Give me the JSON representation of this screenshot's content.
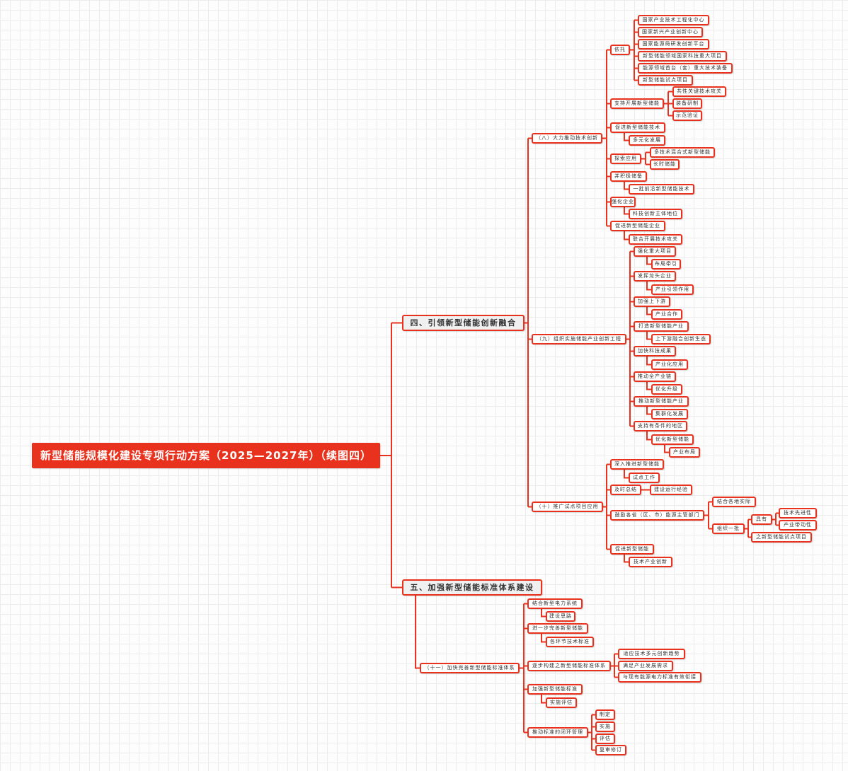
{
  "colors": {
    "accent": "#e8321e",
    "root_text": "#ffffff",
    "node_fill": "#ffffff",
    "branch_fill": "#f0f0f0"
  },
  "mindmap": {
    "title": "新型储能规模化建设专项行动方案（2025—2027年）（续图四）",
    "children": [
      {
        "label": "四、引领新型储能创新融合",
        "children": [
          {
            "label": "（八）大力推动技术创新",
            "children": [
              {
                "label": "依托",
                "children": [
                  {
                    "label": "国家产业技术工程化中心"
                  },
                  {
                    "label": "国家新兴产业创新中心"
                  },
                  {
                    "label": "国家能源局研发创新平台"
                  },
                  {
                    "label": "新型储能领域国家科技重大项目"
                  },
                  {
                    "label": "能源领域首台（套）重大技术装备"
                  },
                  {
                    "label": "新型储能试点项目"
                  }
                ]
              },
              {
                "label": "支持开展新型储能",
                "children": [
                  {
                    "label": "共性关键技术攻关"
                  },
                  {
                    "label": "装备研制"
                  },
                  {
                    "label": "示范验证"
                  }
                ]
              },
              {
                "label": "促进新型储能技术",
                "children": [
                  {
                    "label": "多元化发展"
                  }
                ]
              },
              {
                "label": "探索应用",
                "children": [
                  {
                    "label": "多技术混合式新型储能"
                  },
                  {
                    "label": "长时储能"
                  }
                ]
              },
              {
                "label": "并积极储备",
                "children": [
                  {
                    "label": "一批前沿新型储能技术"
                  }
                ]
              },
              {
                "label": "强化企业",
                "children": [
                  {
                    "label": "科技创新主体地位"
                  }
                ]
              },
              {
                "label": "促进新型储能企业",
                "children": [
                  {
                    "label": "联合开展技术攻关"
                  }
                ]
              }
            ]
          },
          {
            "label": "（九）组织实施储能产业创新工程",
            "children": [
              {
                "label": "强化重大项目",
                "children": [
                  {
                    "label": "布局牵引"
                  }
                ]
              },
              {
                "label": "发挥龙头企业",
                "children": [
                  {
                    "label": "产业引领作用"
                  }
                ]
              },
              {
                "label": "加强上下游",
                "children": [
                  {
                    "label": "产业合作"
                  }
                ]
              },
              {
                "label": "打造新型储能产业",
                "children": [
                  {
                    "label": "上下游融合创新生态"
                  }
                ]
              },
              {
                "label": "加快科技成果",
                "children": [
                  {
                    "label": "产业化应用"
                  }
                ]
              },
              {
                "label": "推动全产业链",
                "children": [
                  {
                    "label": "优化升级"
                  }
                ]
              },
              {
                "label": "推动新型储能产业",
                "children": [
                  {
                    "label": "集群化发展"
                  }
                ]
              },
              {
                "label": "支持有条件的地区",
                "children": [
                  {
                    "label": "优化新型储能",
                    "children": [
                      {
                        "label": "产业布局"
                      }
                    ]
                  }
                ]
              }
            ]
          },
          {
            "label": "（十）推广试点项目应用",
            "children": [
              {
                "label": "深入推进新型储能",
                "children": [
                  {
                    "label": "试点工作"
                  }
                ]
              },
              {
                "label": "及时总结",
                "children": [
                  {
                    "label": "建设运行经验"
                  }
                ]
              },
              {
                "label": "鼓励各省（区、市）能源主管部门",
                "children": [
                  {
                    "label": "结合各地实际"
                  },
                  {
                    "label": "组织一批",
                    "children": [
                      {
                        "label": "具有",
                        "children": [
                          {
                            "label": "技术先进性"
                          },
                          {
                            "label": "产业带动性"
                          }
                        ]
                      },
                      {
                        "label": "之新型储能试点项目"
                      }
                    ]
                  }
                ]
              },
              {
                "label": "促进新型储能",
                "children": [
                  {
                    "label": "技术产业创新"
                  }
                ]
              }
            ]
          }
        ]
      },
      {
        "label": "五、加强新型储能标准体系建设",
        "children": [
          {
            "label": "（十一）加快完善新型储能标准体系",
            "children": [
              {
                "label": "结合新型电力系统",
                "children": [
                  {
                    "label": "建设思路"
                  }
                ]
              },
              {
                "label": "进一步完善新型储能",
                "children": [
                  {
                    "label": "各环节技术标准"
                  }
                ]
              },
              {
                "label": "逐步构建之新型储能标准体系",
                "children": [
                  {
                    "label": "适应技术多元创新趋势"
                  },
                  {
                    "label": "满足产业发展需求"
                  },
                  {
                    "label": "与现有能源电力标准有效衔接"
                  }
                ]
              },
              {
                "label": "加强新型储能标准",
                "children": [
                  {
                    "label": "实施评估"
                  }
                ]
              },
              {
                "label": "推动标准的闭环管理",
                "children": [
                  {
                    "label": "制定"
                  },
                  {
                    "label": "实施"
                  },
                  {
                    "label": "评估"
                  },
                  {
                    "label": "复审修订"
                  }
                ]
              }
            ]
          }
        ]
      }
    ]
  }
}
